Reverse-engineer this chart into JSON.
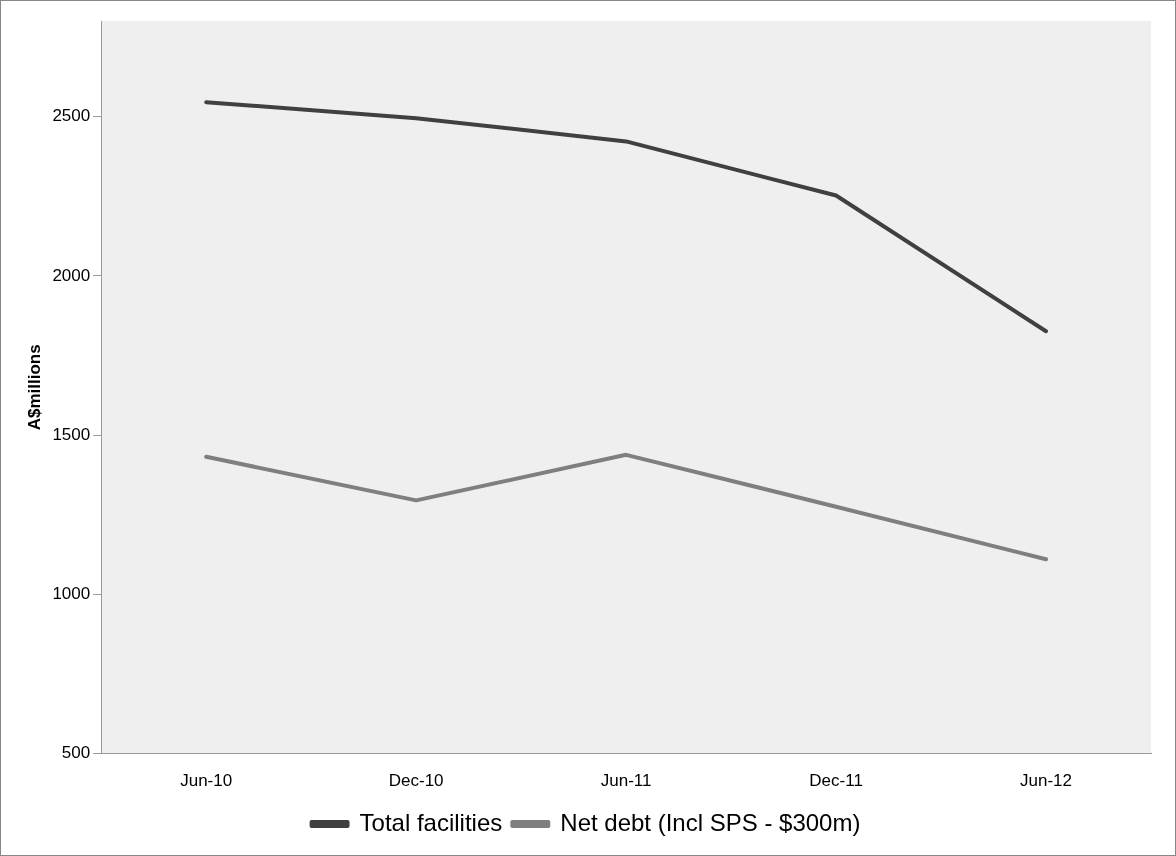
{
  "chart_data": {
    "type": "line",
    "ylabel": "A$millions",
    "categories": [
      "Jun-10",
      "Dec-10",
      "Jun-11",
      "Dec-11",
      "Jun-12"
    ],
    "series": [
      {
        "name": "Total facilities",
        "color": "#404040",
        "values": [
          2545,
          2495,
          2422,
          2252,
          1826
        ]
      },
      {
        "name": "Net debt (Incl SPS - $300m)",
        "color": "#7f7f7f",
        "values": [
          1432,
          1295,
          1438,
          1275,
          1110
        ]
      }
    ],
    "ylim": [
      500,
      2800
    ],
    "yticks": [
      500,
      1000,
      1500,
      2000,
      2500
    ],
    "grid": false,
    "legend": "bottom",
    "marker": "none",
    "line_style": "solid"
  }
}
